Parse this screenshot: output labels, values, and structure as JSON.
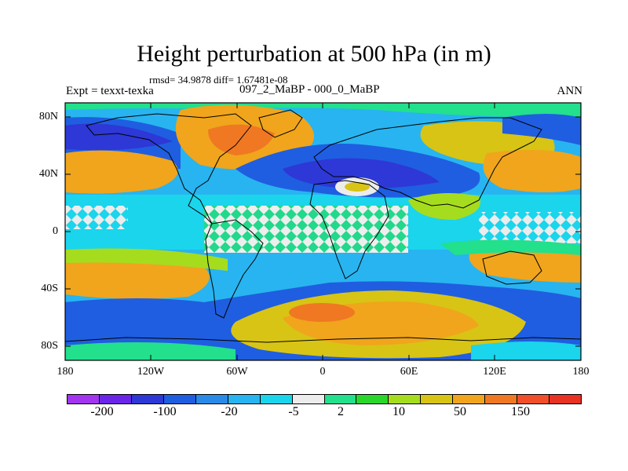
{
  "title": "Height perturbation at 500 hPa (in m)",
  "stats_line": "rmsd= 34.9878 diff= 1.67481e-08",
  "left_label": "Expt = texxt-texka",
  "center_label": "097_2_MaBP - 000_0_MaBP",
  "right_label": "ANN",
  "axes": {
    "x_ticks": [
      "180",
      "120W",
      "60W",
      "0",
      "60E",
      "120E",
      "180"
    ],
    "y_ticks": [
      "80N",
      "40N",
      "0",
      "40S",
      "80S"
    ]
  },
  "colorbar": {
    "colors": [
      "#a335f0",
      "#6a25e8",
      "#2d38d6",
      "#1f5ee0",
      "#2a8ae8",
      "#28b4f0",
      "#1ad5ec",
      "#ececec",
      "#22e08c",
      "#2bd62b",
      "#a6dc1e",
      "#d8c414",
      "#f0a51c",
      "#f07822",
      "#f04f2a",
      "#e83222"
    ],
    "labels": [
      "-200",
      "-100",
      "-20",
      "-5",
      "2",
      "10",
      "50",
      "150"
    ]
  }
}
